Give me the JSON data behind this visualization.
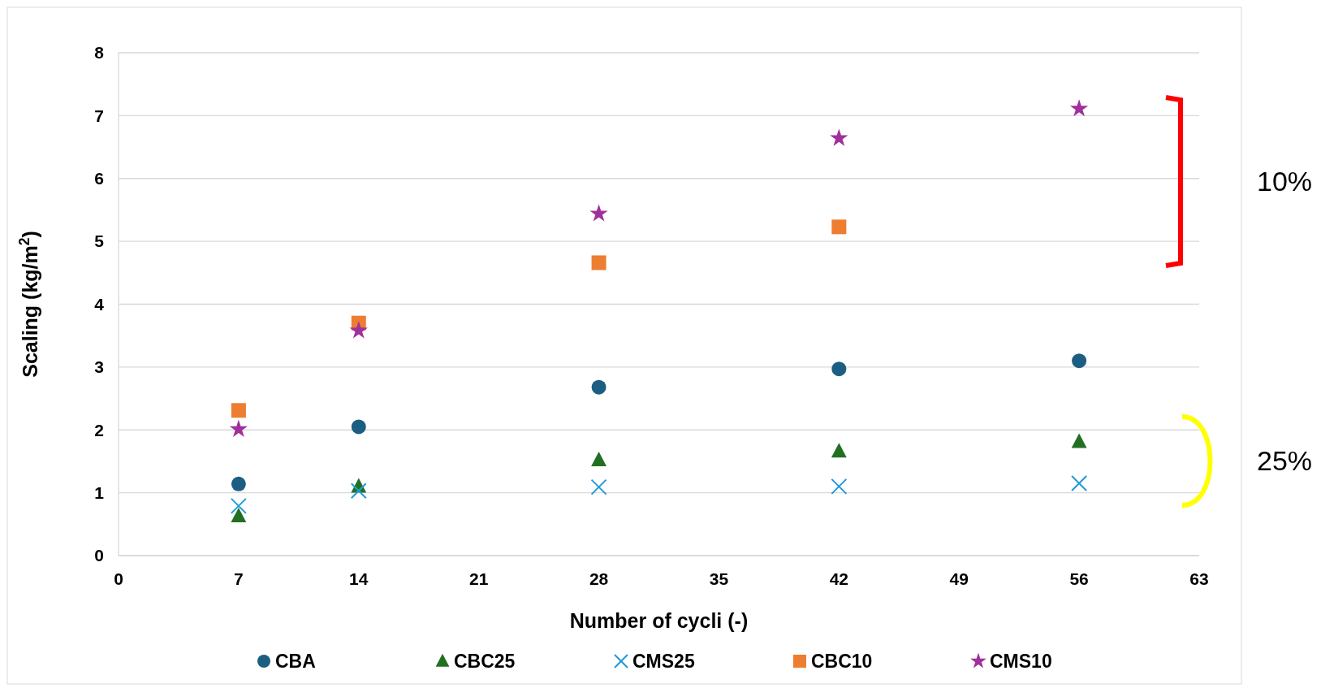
{
  "chart_data": {
    "type": "scatter",
    "xlabel": "Number of cycli (-)",
    "ylabel": "Scaling (kg/m$^{2}$)",
    "xlim": [
      0,
      63
    ],
    "xticks": [
      0,
      7,
      14,
      21,
      28,
      35,
      42,
      49,
      56,
      63
    ],
    "ylim": [
      0,
      8
    ],
    "yticks": [
      0,
      1,
      2,
      3,
      4,
      5,
      6,
      7,
      8
    ],
    "grid": "y",
    "legend": "bottom",
    "series": [
      {
        "name": "CBA",
        "color": "#1b5e82",
        "marker": "circle",
        "x": [
          7,
          14,
          28,
          42,
          56
        ],
        "values": [
          1.14,
          2.05,
          2.68,
          2.97,
          3.1
        ]
      },
      {
        "name": "CBC25",
        "color": "#217022",
        "marker": "triangle",
        "x": [
          7,
          14,
          28,
          42,
          56
        ],
        "values": [
          0.63,
          1.1,
          1.52,
          1.66,
          1.81
        ]
      },
      {
        "name": "CMS25",
        "color": "#1f9bd7",
        "marker": "cross",
        "x": [
          7,
          14,
          28,
          42,
          56
        ],
        "values": [
          0.79,
          1.03,
          1.09,
          1.1,
          1.15
        ]
      },
      {
        "name": "CBC10",
        "color": "#ed7d31",
        "marker": "square",
        "x": [
          7,
          14,
          28,
          42
        ],
        "values": [
          2.31,
          3.7,
          4.66,
          5.23
        ]
      },
      {
        "name": "CMS10",
        "color": "#a0309b",
        "marker": "star",
        "x": [
          7,
          14,
          28,
          42,
          56
        ],
        "values": [
          2.01,
          3.58,
          5.44,
          6.64,
          7.11
        ]
      }
    ],
    "annotations": [
      "10%",
      "25%"
    ]
  }
}
